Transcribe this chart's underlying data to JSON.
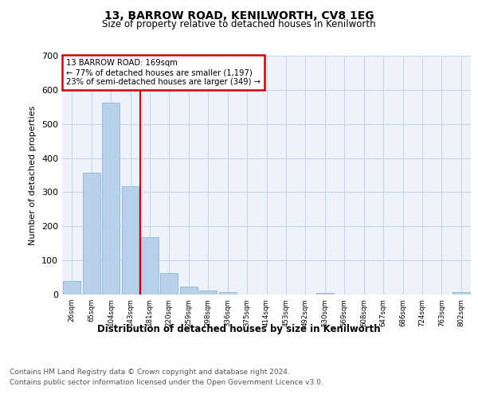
{
  "title1": "13, BARROW ROAD, KENILWORTH, CV8 1EG",
  "title2": "Size of property relative to detached houses in Kenilworth",
  "xlabel": "Distribution of detached houses by size in Kenilworth",
  "ylabel": "Number of detached properties",
  "bar_color": "#b8d0ea",
  "bar_edge_color": "#7aadd4",
  "background_color": "#eef2fa",
  "grid_color": "#c8d4e8",
  "categories": [
    "26sqm",
    "65sqm",
    "104sqm",
    "143sqm",
    "181sqm",
    "220sqm",
    "259sqm",
    "298sqm",
    "336sqm",
    "375sqm",
    "414sqm",
    "453sqm",
    "492sqm",
    "530sqm",
    "569sqm",
    "608sqm",
    "647sqm",
    "686sqm",
    "724sqm",
    "763sqm",
    "802sqm"
  ],
  "values": [
    40,
    357,
    562,
    317,
    169,
    62,
    24,
    12,
    8,
    0,
    0,
    0,
    0,
    5,
    0,
    0,
    0,
    0,
    0,
    0,
    7
  ],
  "red_line_index": 3.5,
  "annotation_text": "13 BARROW ROAD: 169sqm\n← 77% of detached houses are smaller (1,197)\n23% of semi-detached houses are larger (349) →",
  "annotation_box_color": "#ffffff",
  "annotation_box_edge": "#cc0000",
  "red_line_color": "#cc0000",
  "footer1": "Contains HM Land Registry data © Crown copyright and database right 2024.",
  "footer2": "Contains public sector information licensed under the Open Government Licence v3.0.",
  "ylim": [
    0,
    700
  ],
  "yticks": [
    0,
    100,
    200,
    300,
    400,
    500,
    600,
    700
  ]
}
